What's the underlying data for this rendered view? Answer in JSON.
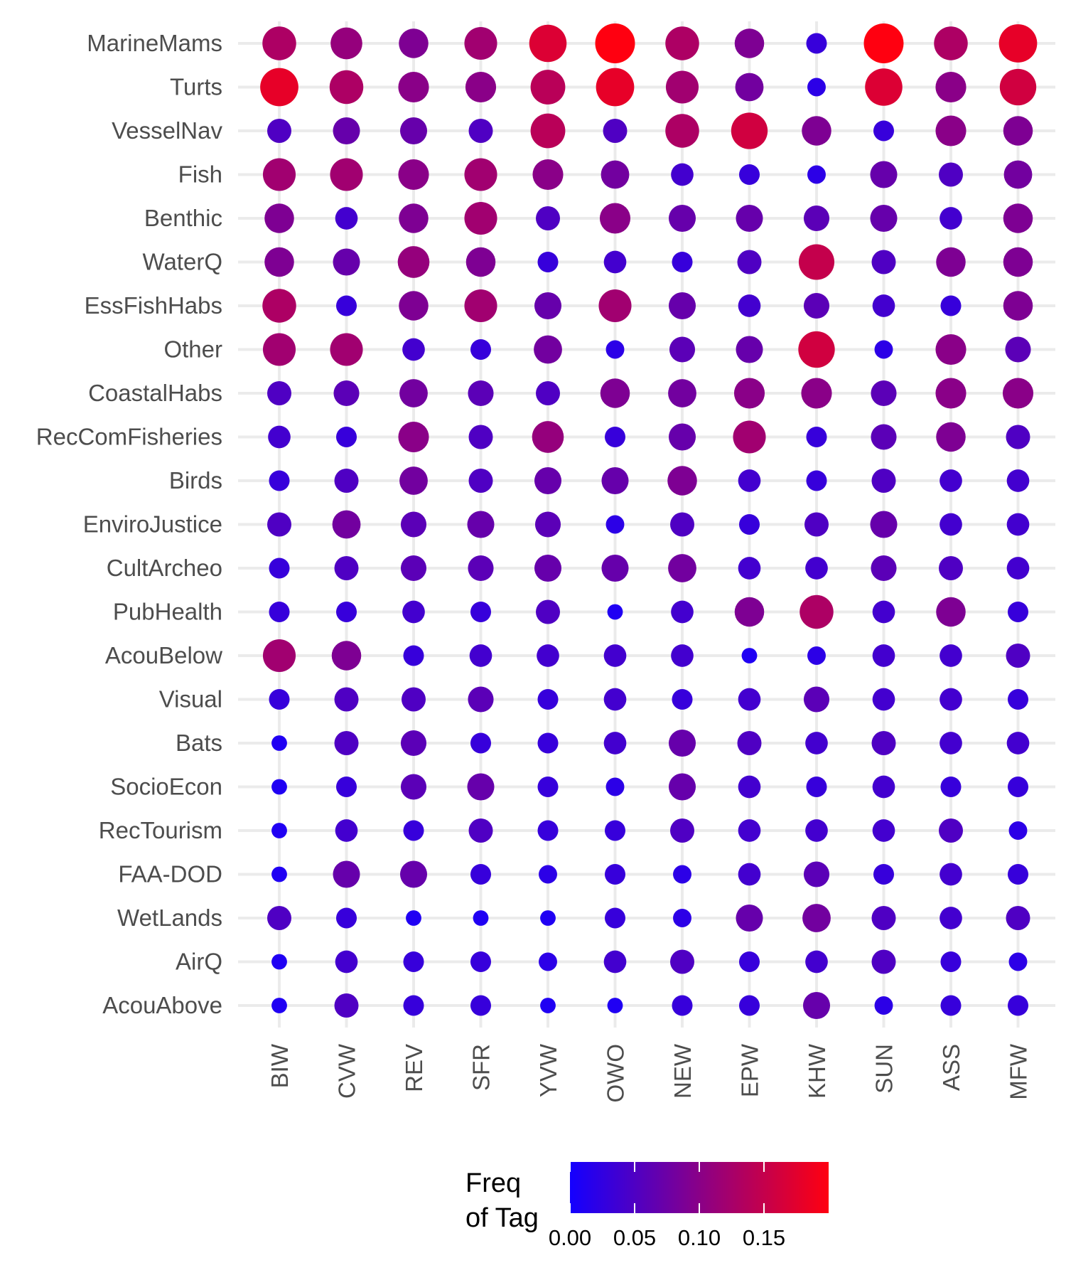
{
  "chart_data": {
    "type": "scatter",
    "title": "",
    "xlabel": "",
    "ylabel": "",
    "grid": true,
    "legend_placement": "bottom",
    "rows": [
      "MarineMams",
      "Turts",
      "VesselNav",
      "Fish",
      "Benthic",
      "WaterQ",
      "EssFishHabs",
      "Other",
      "CoastalHabs",
      "RecComFisheries",
      "Birds",
      "EnviroJustice",
      "CultArcheo",
      "PubHealth",
      "AcouBelow",
      "Visual",
      "Bats",
      "SocioEcon",
      "RecTourism",
      "FAA-DOD",
      "WetLands",
      "AirQ",
      "AcouAbove"
    ],
    "columns": [
      "BIW",
      "CVW",
      "REV",
      "SFR",
      "YVW",
      "OWO",
      "NEW",
      "EPW",
      "KHW",
      "SUN",
      "ASS",
      "MFW"
    ],
    "values": [
      [
        0.13,
        0.11,
        0.09,
        0.12,
        0.17,
        0.2,
        0.13,
        0.09,
        0.03,
        0.2,
        0.13,
        0.18
      ],
      [
        0.18,
        0.13,
        0.1,
        0.1,
        0.14,
        0.18,
        0.12,
        0.08,
        0.02,
        0.17,
        0.1,
        0.16
      ],
      [
        0.05,
        0.07,
        0.07,
        0.05,
        0.14,
        0.05,
        0.13,
        0.16,
        0.09,
        0.03,
        0.1,
        0.09
      ],
      [
        0.12,
        0.12,
        0.1,
        0.12,
        0.1,
        0.08,
        0.04,
        0.03,
        0.02,
        0.07,
        0.05,
        0.08
      ],
      [
        0.09,
        0.04,
        0.09,
        0.12,
        0.05,
        0.1,
        0.07,
        0.07,
        0.06,
        0.07,
        0.04,
        0.09
      ],
      [
        0.09,
        0.07,
        0.11,
        0.09,
        0.03,
        0.04,
        0.03,
        0.05,
        0.15,
        0.05,
        0.09,
        0.09
      ],
      [
        0.13,
        0.03,
        0.09,
        0.12,
        0.07,
        0.12,
        0.07,
        0.04,
        0.06,
        0.04,
        0.03,
        0.09
      ],
      [
        0.12,
        0.12,
        0.04,
        0.03,
        0.08,
        0.02,
        0.06,
        0.07,
        0.16,
        0.02,
        0.1,
        0.06
      ],
      [
        0.05,
        0.06,
        0.08,
        0.06,
        0.05,
        0.09,
        0.08,
        0.1,
        0.1,
        0.06,
        0.1,
        0.1
      ],
      [
        0.04,
        0.03,
        0.1,
        0.05,
        0.11,
        0.03,
        0.07,
        0.12,
        0.03,
        0.06,
        0.09,
        0.05
      ],
      [
        0.03,
        0.05,
        0.08,
        0.05,
        0.07,
        0.07,
        0.09,
        0.04,
        0.03,
        0.05,
        0.04,
        0.04
      ],
      [
        0.05,
        0.08,
        0.06,
        0.07,
        0.06,
        0.02,
        0.05,
        0.03,
        0.05,
        0.07,
        0.04,
        0.04
      ],
      [
        0.03,
        0.05,
        0.06,
        0.06,
        0.07,
        0.07,
        0.08,
        0.04,
        0.04,
        0.06,
        0.05,
        0.04
      ],
      [
        0.03,
        0.03,
        0.04,
        0.03,
        0.05,
        0.01,
        0.04,
        0.09,
        0.13,
        0.04,
        0.09,
        0.03
      ],
      [
        0.12,
        0.09,
        0.03,
        0.04,
        0.04,
        0.04,
        0.04,
        0.01,
        0.02,
        0.04,
        0.04,
        0.05
      ],
      [
        0.03,
        0.05,
        0.05,
        0.06,
        0.03,
        0.04,
        0.03,
        0.04,
        0.06,
        0.04,
        0.04,
        0.03
      ],
      [
        0.01,
        0.05,
        0.06,
        0.03,
        0.03,
        0.04,
        0.07,
        0.05,
        0.04,
        0.05,
        0.04,
        0.04
      ],
      [
        0.01,
        0.03,
        0.06,
        0.07,
        0.03,
        0.02,
        0.07,
        0.04,
        0.03,
        0.04,
        0.03,
        0.03
      ],
      [
        0.01,
        0.04,
        0.03,
        0.05,
        0.03,
        0.03,
        0.05,
        0.04,
        0.04,
        0.04,
        0.05,
        0.02
      ],
      [
        0.01,
        0.07,
        0.07,
        0.03,
        0.02,
        0.03,
        0.02,
        0.04,
        0.06,
        0.03,
        0.04,
        0.03
      ],
      [
        0.05,
        0.03,
        0.01,
        0.01,
        0.01,
        0.03,
        0.02,
        0.07,
        0.08,
        0.05,
        0.04,
        0.05
      ],
      [
        0.01,
        0.04,
        0.03,
        0.03,
        0.02,
        0.04,
        0.05,
        0.03,
        0.04,
        0.05,
        0.03,
        0.02
      ],
      [
        0.01,
        0.05,
        0.03,
        0.03,
        0.01,
        0.01,
        0.03,
        0.03,
        0.07,
        0.02,
        0.03,
        0.03
      ]
    ],
    "legend": {
      "title_lines": [
        "Freq",
        "of Tag"
      ],
      "ticks": [
        0.0,
        0.05,
        0.1,
        0.15
      ],
      "tick_labels": [
        "0.00",
        "0.05",
        "0.10",
        "0.15"
      ],
      "range": [
        0,
        0.2
      ],
      "color_low": "#1400ff",
      "color_high": "#ff0010"
    }
  }
}
